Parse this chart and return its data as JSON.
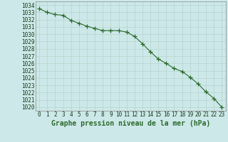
{
  "x": [
    0,
    1,
    2,
    3,
    4,
    5,
    6,
    7,
    8,
    9,
    10,
    11,
    12,
    13,
    14,
    15,
    16,
    17,
    18,
    19,
    20,
    21,
    22,
    23
  ],
  "y": [
    1033.5,
    1033.0,
    1032.7,
    1032.6,
    1031.9,
    1031.5,
    1031.1,
    1030.8,
    1030.5,
    1030.5,
    1030.5,
    1030.3,
    1029.7,
    1028.7,
    1027.6,
    1026.6,
    1026.0,
    1025.3,
    1024.9,
    1024.1,
    1023.2,
    1022.1,
    1021.2,
    1020.0
  ],
  "line_color": "#2d6a2d",
  "marker": "+",
  "marker_size": 4,
  "bg_color": "#cce8e8",
  "grid_color": "#b0cfc8",
  "ylabel_ticks": [
    1020,
    1021,
    1022,
    1023,
    1024,
    1025,
    1026,
    1027,
    1028,
    1029,
    1030,
    1031,
    1032,
    1033,
    1034
  ],
  "xlabel": "Graphe pression niveau de la mer (hPa)",
  "ylim": [
    1019.5,
    1034.5
  ],
  "xlim": [
    -0.5,
    23.5
  ],
  "tick_fontsize": 5.5,
  "xlabel_fontsize": 7
}
